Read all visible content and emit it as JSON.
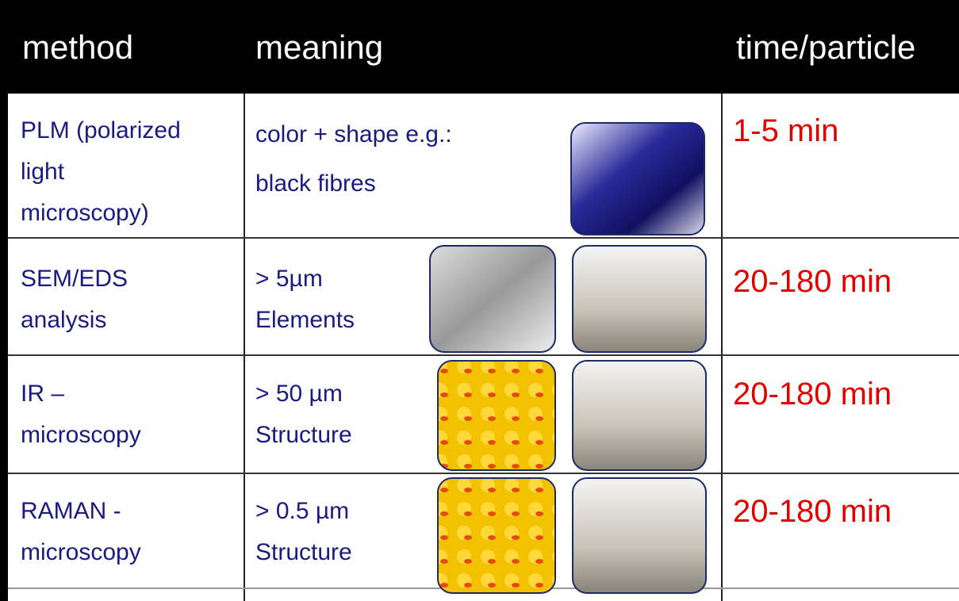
{
  "header": {
    "columns": [
      "method",
      "meaning",
      "time/particle"
    ]
  },
  "table": {
    "rows": [
      {
        "method": [
          "PLM (polarized",
          "light",
          "microscopy)"
        ],
        "meaning": [
          "color + shape e.g.:",
          "black fibres"
        ],
        "time": "1-5 min"
      },
      {
        "method": [
          "SEM/EDS",
          "analysis"
        ],
        "meaning": [
          "> 5µm",
          "Elements"
        ],
        "time": "20-180 min"
      },
      {
        "method": [
          "IR –",
          "microscopy"
        ],
        "meaning": [
          "> 50 µm",
          "Structure"
        ],
        "time": "20-180 min"
      },
      {
        "method": [
          "RAMAN -",
          "microscopy"
        ],
        "meaning": [
          "> 0.5 µm",
          "Structure"
        ],
        "time": "20-180 min"
      }
    ]
  }
}
